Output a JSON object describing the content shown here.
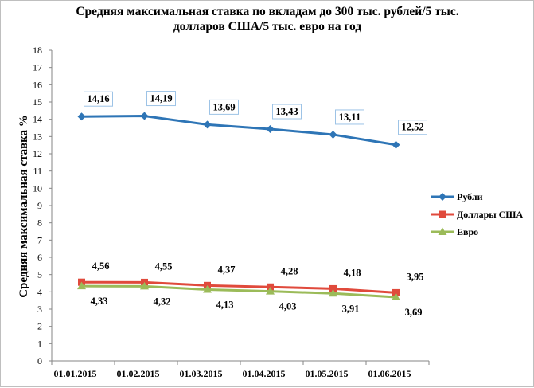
{
  "chart_data": {
    "type": "line",
    "title_line1": "Средняя максимальная ставка по вкладам до 300 тыс. рублей/5 тыс.",
    "title_line2": "долларов США/5 тыс. евро на год",
    "ylabel": "Средняя максимальная ставка %",
    "xlabel": "",
    "ylim": [
      0,
      18
    ],
    "yticks": [
      "0",
      "1",
      "2",
      "3",
      "4",
      "5",
      "6",
      "7",
      "8",
      "9",
      "10",
      "11",
      "12",
      "13",
      "14",
      "15",
      "16",
      "17",
      "18"
    ],
    "categories": [
      "01.01.2015",
      "01.02.2015",
      "01.03.2015",
      "01.04.2015",
      "01.05.2015",
      "01.06.2015"
    ],
    "grid": false,
    "legend_position": "right",
    "series": [
      {
        "name": "Рубли",
        "color": "#2e75b6",
        "marker": "diamond",
        "values": [
          14.16,
          14.19,
          13.69,
          13.43,
          13.11,
          12.52
        ],
        "labels": [
          "14,16",
          "14,19",
          "13,69",
          "13,43",
          "13,11",
          "12,52"
        ],
        "label_style": "boxed-above"
      },
      {
        "name": "Доллары  США",
        "color": "#e04a3c",
        "marker": "square",
        "values": [
          4.56,
          4.55,
          4.37,
          4.28,
          4.18,
          3.95
        ],
        "labels": [
          "4,56",
          "4,55",
          "4,37",
          "4,28",
          "4,18",
          "3,95"
        ],
        "label_style": "above"
      },
      {
        "name": "Евро",
        "color": "#9bbb59",
        "marker": "triangle",
        "values": [
          4.33,
          4.32,
          4.13,
          4.03,
          3.91,
          3.69
        ],
        "labels": [
          "4,33",
          "4,32",
          "4,13",
          "4,03",
          "3,91",
          "3,69"
        ],
        "label_style": "below"
      }
    ]
  }
}
